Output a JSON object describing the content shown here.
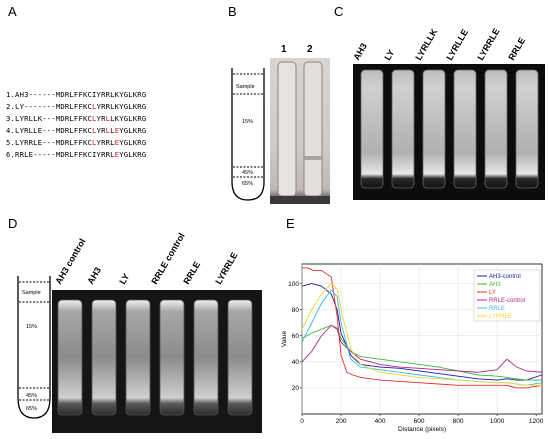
{
  "panels": {
    "a": "A",
    "b": "B",
    "c": "C",
    "d": "D",
    "e": "E"
  },
  "sequences": [
    {
      "prefix": "1.AH3------",
      "seq": [
        [
          "MDRLFFKCIYRRLKYGLKRG",
          ""
        ]
      ]
    },
    {
      "prefix": "2.LY-------",
      "seq": [
        [
          "MDRLFFKC",
          ""
        ],
        [
          "L",
          "r"
        ],
        [
          "YRRLKYGLKRG",
          ""
        ]
      ]
    },
    {
      "prefix": "3.LYRLLK---",
      "seq": [
        [
          "MDRLFFKC",
          ""
        ],
        [
          "L",
          "r"
        ],
        [
          "YR",
          ""
        ],
        [
          "L",
          "r"
        ],
        [
          "LKYGLKRG",
          ""
        ]
      ]
    },
    {
      "prefix": "4.LYRLLE---",
      "seq": [
        [
          "MDRLFFKC",
          ""
        ],
        [
          "L",
          "r"
        ],
        [
          "YR",
          ""
        ],
        [
          "L",
          "r"
        ],
        [
          "L",
          ""
        ],
        [
          "E",
          "r"
        ],
        [
          "YGLKRG",
          ""
        ]
      ]
    },
    {
      "prefix": "5.LYRRLE---",
      "seq": [
        [
          "MDRLFFKC",
          ""
        ],
        [
          "L",
          "r"
        ],
        [
          "YRRL",
          ""
        ],
        [
          "E",
          "r"
        ],
        [
          "YGLKRG",
          ""
        ]
      ]
    },
    {
      "prefix": "6.RRLE-----",
      "seq": [
        [
          "MDRLFFKCIYRRL",
          ""
        ],
        [
          "E",
          "r"
        ],
        [
          "YGLKRG",
          ""
        ]
      ]
    }
  ],
  "gradient": {
    "sample": "Sample",
    "mid": "15%",
    "low": "45%",
    "bottom": "65%"
  },
  "panel_b": {
    "tube1": "1",
    "tube2": "2"
  },
  "panel_c_labels": [
    "AH3",
    "LY",
    "LYRLLK",
    "LYRLLE",
    "LYRRLE",
    "RRLE"
  ],
  "panel_d_labels": [
    "AH3 control",
    "AH3",
    "LY",
    "RRLE control",
    "RRLE",
    "LYRRLE"
  ],
  "chart_data": {
    "type": "line",
    "xlabel": "Distance (pixels)",
    "ylabel": "Value",
    "xlim": [
      0,
      1230
    ],
    "ylim": [
      0,
      115
    ],
    "xticks": [
      0,
      200,
      400,
      600,
      800,
      1000,
      1200
    ],
    "yticks": [
      20,
      40,
      60,
      80,
      100
    ],
    "grid": true,
    "legend_position": "top-right",
    "series": [
      {
        "name": "AH3-control",
        "color": "#1a1aa8",
        "x": [
          0,
          50,
          100,
          150,
          180,
          200,
          250,
          300,
          400,
          500,
          600,
          700,
          800,
          900,
          1000,
          1050,
          1100,
          1150,
          1230
        ],
        "y": [
          98,
          100,
          98,
          92,
          80,
          62,
          45,
          38,
          36,
          35,
          33,
          31,
          29,
          27,
          26,
          27,
          26,
          26,
          30
        ]
      },
      {
        "name": "AH3",
        "color": "#3cb83c",
        "x": [
          0,
          50,
          100,
          150,
          180,
          200,
          250,
          300,
          400,
          500,
          600,
          700,
          800,
          900,
          1000,
          1050,
          1100,
          1150,
          1230
        ],
        "y": [
          58,
          62,
          65,
          68,
          66,
          58,
          48,
          44,
          42,
          40,
          38,
          36,
          33,
          30,
          29,
          28,
          27,
          26,
          26
        ]
      },
      {
        "name": "LY",
        "color": "#e23030",
        "x": [
          0,
          30,
          60,
          100,
          150,
          180,
          200,
          230,
          260,
          300,
          400,
          500,
          600,
          700,
          800,
          900,
          1000,
          1050,
          1100,
          1150,
          1230
        ],
        "y": [
          112,
          112,
          110,
          110,
          105,
          75,
          45,
          32,
          30,
          28,
          26,
          25,
          24,
          23,
          22,
          22,
          22,
          22,
          20,
          20,
          22
        ]
      },
      {
        "name": "RRLE-control",
        "color": "#b02888",
        "x": [
          0,
          50,
          100,
          150,
          180,
          200,
          250,
          300,
          400,
          500,
          600,
          700,
          800,
          900,
          1000,
          1050,
          1100,
          1150,
          1230
        ],
        "y": [
          40,
          48,
          60,
          68,
          65,
          55,
          48,
          42,
          38,
          36,
          35,
          34,
          33,
          32,
          34,
          42,
          36,
          33,
          32
        ]
      },
      {
        "name": "RRLE",
        "color": "#40b8d8",
        "x": [
          0,
          50,
          100,
          150,
          180,
          200,
          250,
          300,
          400,
          500,
          600,
          700,
          800,
          900,
          1000,
          1050,
          1100,
          1150,
          1230
        ],
        "y": [
          55,
          70,
          85,
          95,
          90,
          70,
          42,
          36,
          34,
          32,
          30,
          28,
          26,
          25,
          24,
          24,
          23,
          22,
          24
        ]
      },
      {
        "name": "LYRRLE",
        "color": "#e8d83a",
        "x": [
          0,
          50,
          100,
          150,
          180,
          200,
          250,
          300,
          400,
          500,
          600,
          700,
          800,
          900,
          1000,
          1050,
          1100,
          1150,
          1230
        ],
        "y": [
          65,
          80,
          92,
          100,
          96,
          80,
          50,
          38,
          32,
          30,
          28,
          27,
          26,
          25,
          24,
          24,
          23,
          22,
          22
        ]
      }
    ]
  }
}
